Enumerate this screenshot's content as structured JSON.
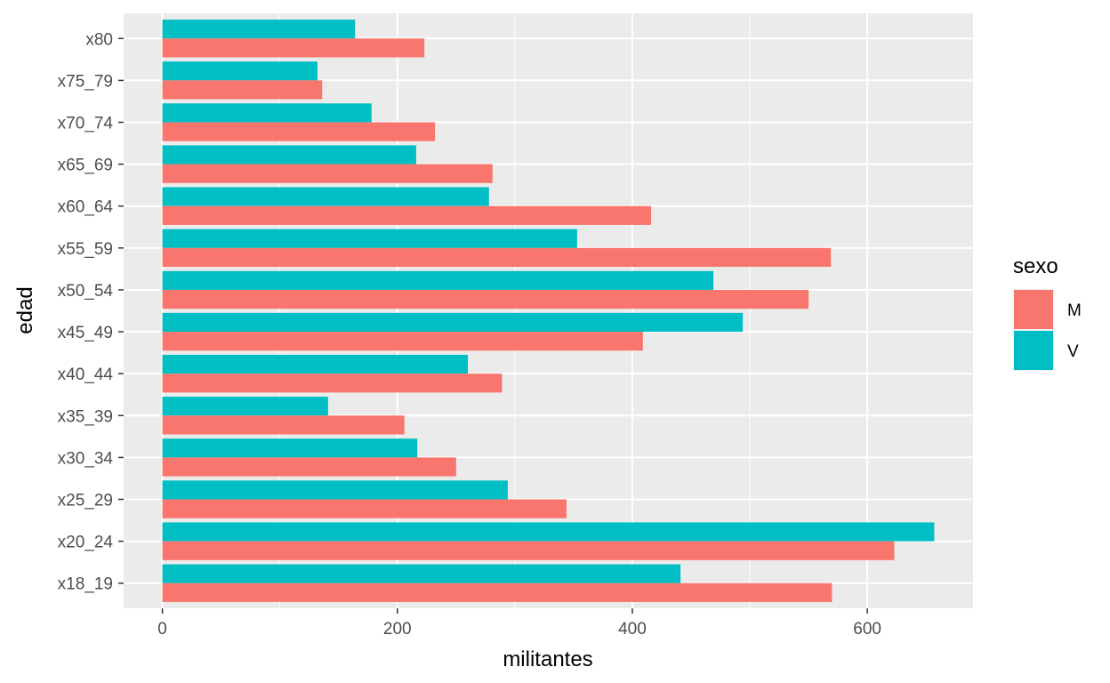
{
  "chart_data": {
    "type": "bar",
    "orientation": "horizontal",
    "categories": [
      "x18_19",
      "x20_24",
      "x25_29",
      "x30_34",
      "x35_39",
      "x40_44",
      "x45_49",
      "x50_54",
      "x55_59",
      "x60_64",
      "x65_69",
      "x70_74",
      "x75_79",
      "x80"
    ],
    "series": [
      {
        "name": "M",
        "color": "#F8766D",
        "values": [
          570,
          623,
          344,
          250,
          206,
          289,
          409,
          550,
          569,
          416,
          281,
          232,
          136,
          223
        ]
      },
      {
        "name": "V",
        "color": "#00BFC4",
        "values": [
          441,
          657,
          294,
          217,
          141,
          260,
          494,
          469,
          353,
          278,
          216,
          178,
          132,
          164
        ]
      }
    ],
    "xlabel": "militantes",
    "ylabel": "edad",
    "xlim": [
      -33,
      690
    ],
    "x_ticks": [
      0,
      200,
      400,
      600
    ],
    "x_tick_labels": [
      "0",
      "200",
      "400",
      "600"
    ],
    "grid": true,
    "legend": {
      "title": "sexo",
      "position": "right",
      "entries": [
        "M",
        "V"
      ]
    },
    "panel_background": "#EBEBEB",
    "grid_color": "#FFFFFF"
  }
}
